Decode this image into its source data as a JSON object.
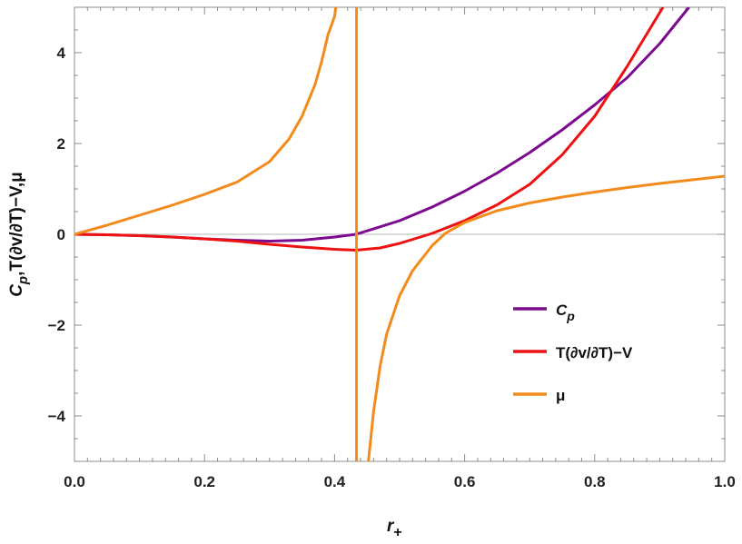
{
  "chart_data": {
    "type": "line",
    "title": "",
    "xlabel": "r",
    "xlabel_sub": "+",
    "ylabel_main": "C",
    "ylabel_sub": "p",
    "ylabel_rest": ",T(∂v/∂T)−V,μ",
    "xlim": [
      0,
      1
    ],
    "ylim": [
      -5,
      5
    ],
    "x_ticks": [
      0.0,
      0.2,
      0.4,
      0.6,
      0.8,
      1.0
    ],
    "x_tick_labels": [
      "0.0",
      "0.2",
      "0.4",
      "0.6",
      "0.8",
      "1.0"
    ],
    "y_ticks": [
      -4,
      -2,
      0,
      2,
      4
    ],
    "y_tick_labels": [
      "−4",
      "−2",
      "0",
      "2",
      "4"
    ],
    "grid": false,
    "frame": true,
    "legend_position": "lower-right",
    "series": [
      {
        "name": "C",
        "name_sub": "p",
        "color": "#7b0a8e",
        "x": [
          0.0,
          0.05,
          0.1,
          0.15,
          0.2,
          0.25,
          0.3,
          0.35,
          0.4,
          0.433,
          0.5,
          0.55,
          0.6,
          0.65,
          0.7,
          0.75,
          0.8,
          0.85,
          0.9,
          0.945
        ],
        "y": [
          0.0,
          -0.01,
          -0.03,
          -0.06,
          -0.1,
          -0.13,
          -0.15,
          -0.13,
          -0.06,
          0.0,
          0.3,
          0.6,
          0.95,
          1.35,
          1.8,
          2.3,
          2.85,
          3.45,
          4.2,
          5.0
        ]
      },
      {
        "name": "T(∂v/∂T)−V",
        "color": "#ee1111",
        "x": [
          0.0,
          0.05,
          0.1,
          0.15,
          0.2,
          0.25,
          0.3,
          0.35,
          0.4,
          0.433,
          0.47,
          0.5,
          0.55,
          0.6,
          0.65,
          0.7,
          0.75,
          0.8,
          0.85,
          0.905
        ],
        "y": [
          0.0,
          -0.01,
          -0.03,
          -0.06,
          -0.1,
          -0.15,
          -0.22,
          -0.28,
          -0.33,
          -0.35,
          -0.3,
          -0.2,
          0.02,
          0.3,
          0.65,
          1.1,
          1.75,
          2.6,
          3.7,
          5.0
        ]
      },
      {
        "name": "μ",
        "color": "#f28a1c",
        "branches": [
          {
            "x": [
              0.0,
              0.05,
              0.1,
              0.15,
              0.2,
              0.25,
              0.3,
              0.33,
              0.35,
              0.37,
              0.38,
              0.39,
              0.4,
              0.402
            ],
            "y": [
              0.0,
              0.2,
              0.42,
              0.64,
              0.88,
              1.15,
              1.6,
              2.1,
              2.6,
              3.3,
              3.8,
              4.4,
              4.8,
              5.0
            ]
          },
          {
            "x": [
              0.4338,
              0.4338
            ],
            "y": [
              5.0,
              -5.0
            ]
          },
          {
            "x": [
              0.452,
              0.46,
              0.47,
              0.48,
              0.5,
              0.52,
              0.55,
              0.57,
              0.6,
              0.65,
              0.7,
              0.75,
              0.8,
              0.85,
              0.9,
              0.95,
              1.0
            ],
            "y": [
              -5.0,
              -3.9,
              -2.9,
              -2.2,
              -1.35,
              -0.8,
              -0.25,
              0.02,
              0.26,
              0.52,
              0.69,
              0.82,
              0.93,
              1.03,
              1.12,
              1.2,
              1.28
            ]
          }
        ]
      }
    ]
  }
}
